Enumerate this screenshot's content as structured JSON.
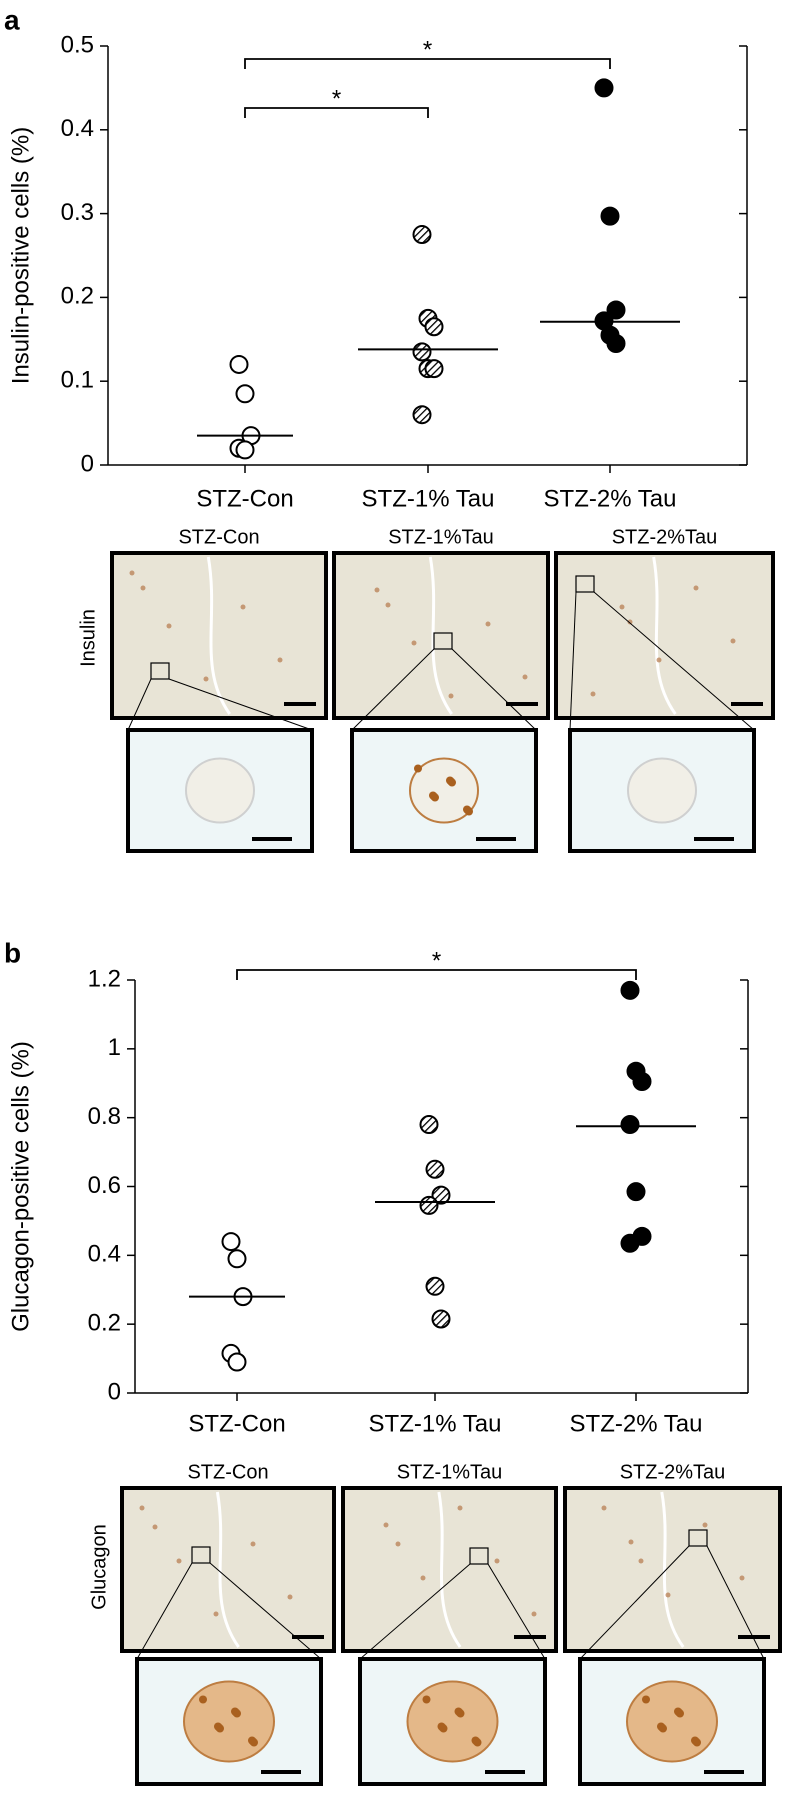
{
  "chart_data": [
    {
      "type": "dotplot",
      "panel": "a",
      "ylabel": "Insulin-positive cells (%)",
      "categories": [
        "STZ-Con",
        "STZ-1% Tau",
        "STZ-2% Tau"
      ],
      "points": [
        [
          0.12,
          0.085,
          0.035,
          0.02,
          0.018
        ],
        [
          0.275,
          0.175,
          0.165,
          0.135,
          0.115,
          0.115,
          0.06
        ],
        [
          0.45,
          0.297,
          0.185,
          0.172,
          0.155,
          0.145
        ]
      ],
      "medians": [
        0.035,
        0.138,
        0.171
      ],
      "marker_styles": [
        "open",
        "hatched",
        "filled"
      ],
      "ylim": [
        0,
        0.5
      ],
      "yticks": [
        0,
        0.1,
        0.2,
        0.3,
        0.4,
        0.5
      ],
      "annotations": [
        "*",
        "*"
      ]
    },
    {
      "type": "dotplot",
      "panel": "b",
      "ylabel": "Glucagon-positive cells (%)",
      "categories": [
        "STZ-Con",
        "STZ-1% Tau",
        "STZ-2% Tau"
      ],
      "points": [
        [
          0.44,
          0.39,
          0.28,
          0.115,
          0.09
        ],
        [
          0.78,
          0.65,
          0.575,
          0.545,
          0.31,
          0.215
        ],
        [
          1.17,
          0.935,
          0.905,
          0.78,
          0.585,
          0.455,
          0.435
        ]
      ],
      "medians": [
        0.28,
        0.555,
        0.775
      ],
      "marker_styles": [
        "open",
        "hatched",
        "filled"
      ],
      "ylim": [
        0,
        1.2
      ],
      "yticks": [
        0,
        0.2,
        0.4,
        0.6,
        0.8,
        1,
        1.2
      ],
      "annotations": [
        "*"
      ]
    }
  ],
  "figure": {
    "panels": [
      {
        "stain": "Insulin",
        "image_labels": [
          "STZ-Con",
          "STZ-1%Tau",
          "STZ-2%Tau"
        ]
      },
      {
        "stain": "Glucagon",
        "image_labels": [
          "STZ-Con",
          "STZ-1%Tau",
          "STZ-2%Tau"
        ]
      }
    ]
  }
}
